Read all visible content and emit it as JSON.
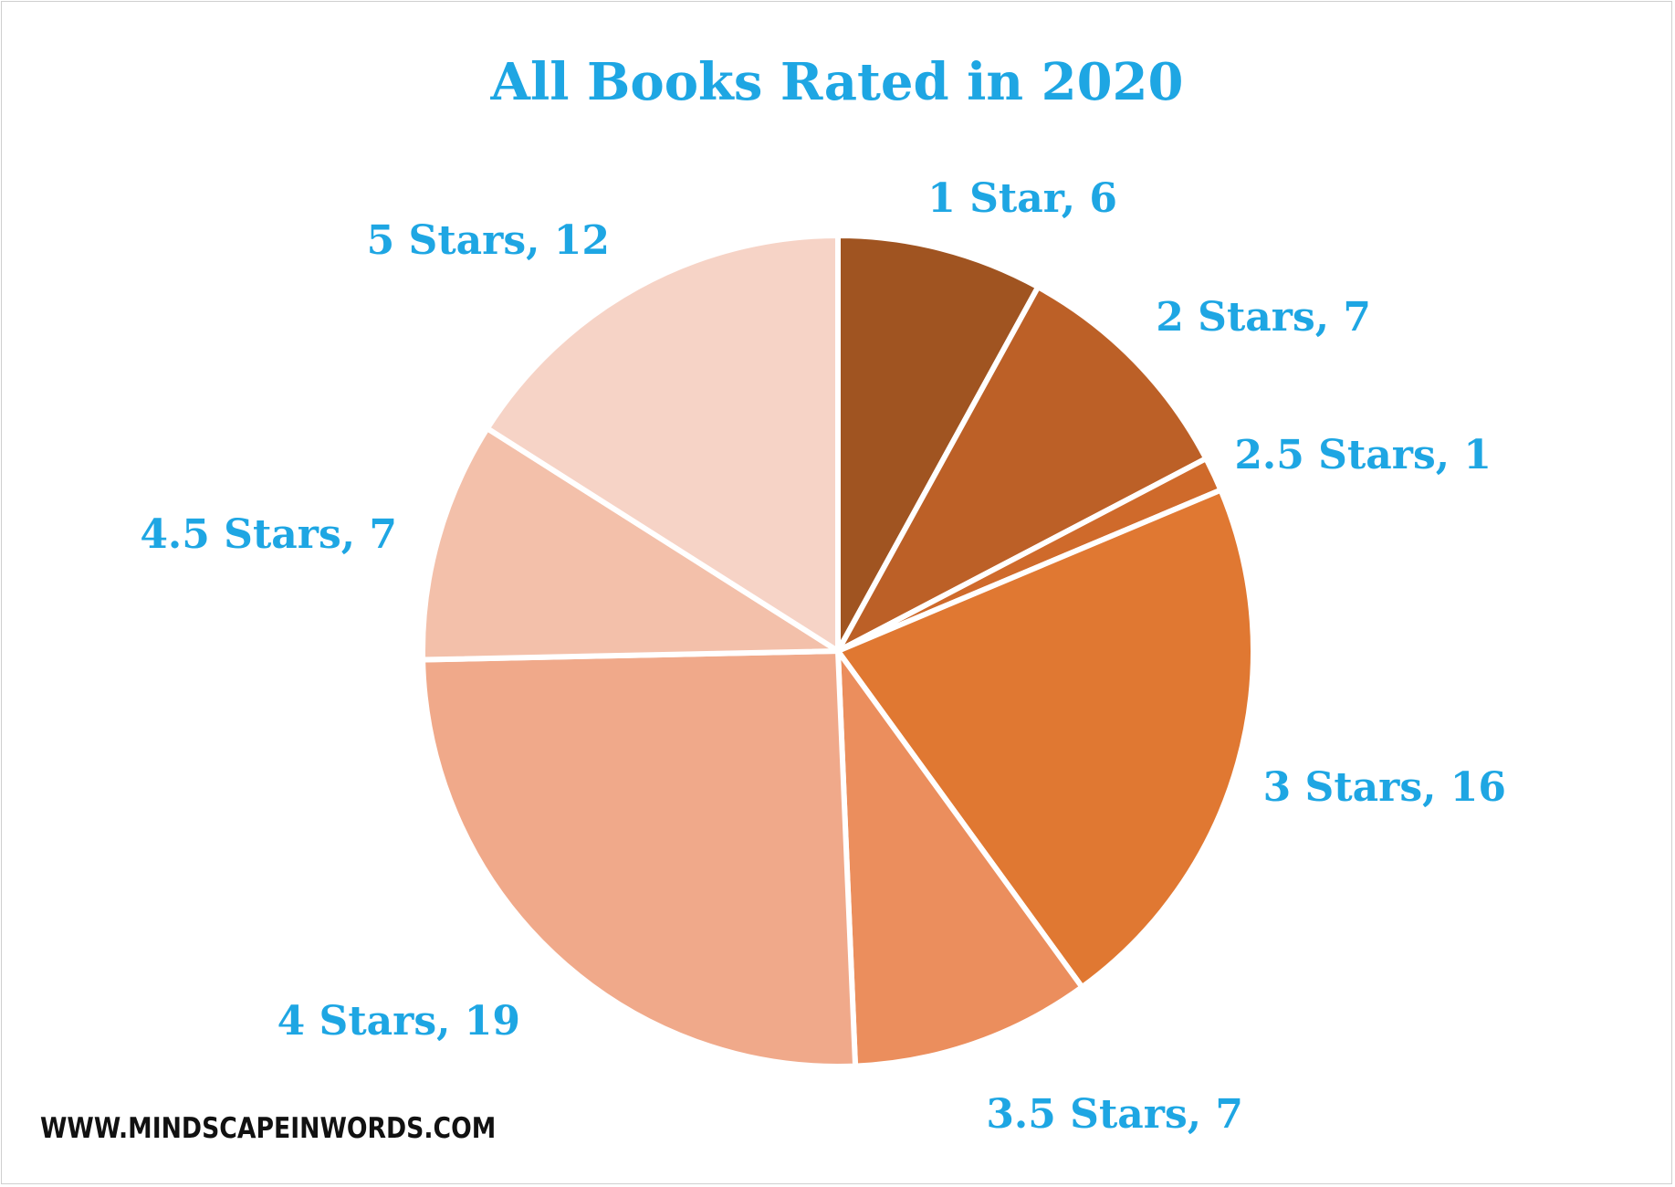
{
  "chart_data": {
    "type": "pie",
    "title": "All Books Rated in 2020",
    "slices": [
      {
        "label": "1 Star, 6",
        "category": "1 Star",
        "value": 6,
        "color": "#a05421"
      },
      {
        "label": "2 Stars, 7",
        "category": "2 Stars",
        "value": 7,
        "color": "#bc6027"
      },
      {
        "label": "2.5 Stars, 1",
        "category": "2.5 Stars",
        "value": 1,
        "color": "#cf6a2b"
      },
      {
        "label": "3 Stars, 16",
        "category": "3 Stars",
        "value": 16,
        "color": "#e07832"
      },
      {
        "label": "3.5 Stars, 7",
        "category": "3.5 Stars",
        "value": 7,
        "color": "#eb8e5d"
      },
      {
        "label": "4 Stars, 19",
        "category": "4 Stars",
        "value": 19,
        "color": "#f0a98a"
      },
      {
        "label": "4.5 Stars, 7",
        "category": "4.5 Stars",
        "value": 7,
        "color": "#f3c0aa"
      },
      {
        "label": "5 Stars, 12",
        "category": "5 Stars",
        "value": 12,
        "color": "#f6d3c6"
      }
    ],
    "label_color": "#1ea6e3",
    "legend": "none"
  },
  "watermark": "WWW.MINDSCAPEINWORDS.COM"
}
